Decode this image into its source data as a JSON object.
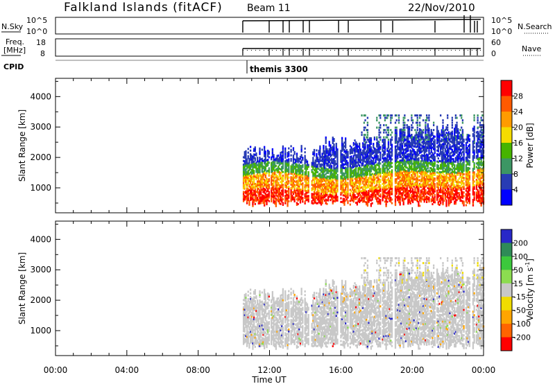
{
  "header": {
    "title": "Falkland Islands (fitACF)",
    "beam": "Beam 11",
    "date": "22/Nov/2010"
  },
  "strips": {
    "nsky": {
      "label": "N.Sky",
      "ticks_left": [
        "10^5",
        "10^0"
      ],
      "ticks_right": [
        "10^5",
        "10^0"
      ],
      "right_label": "N.Search"
    },
    "freq": {
      "label": "Freq.",
      "unit": "[MHz]",
      "ticks_left": [
        "18",
        "8"
      ],
      "ticks_right": [
        "60",
        "0"
      ],
      "right_label": "Nave"
    },
    "cpid": {
      "label": "CPID",
      "program": "themis 3300"
    }
  },
  "power_panel": {
    "ylabel": "Slant Range [km]",
    "colorbar_label": "Power [dB]",
    "colorbar_ticks": [
      "28",
      "24",
      "20",
      "16",
      "12",
      "8",
      "4"
    ],
    "colors": [
      "#ff0000",
      "#ff5a00",
      "#ff9b00",
      "#f5dc00",
      "#46b400",
      "#3c9664",
      "#283cb4",
      "#0000ff"
    ]
  },
  "velocity_panel": {
    "ylabel": "Slant Range [km]",
    "colorbar_label": "Velocity [m s",
    "colorbar_sup": "-1",
    "colorbar_close": "]",
    "colorbar_ticks": [
      "200",
      "100",
      "50",
      "15",
      "-15",
      "-50",
      "-100",
      "-200"
    ],
    "colors": [
      "#2828c8",
      "#2e8b57",
      "#3cc83c",
      "#8cdc50",
      "#c8c8c8",
      "#f0dc00",
      "#ffa500",
      "#ff6400",
      "#ff0000"
    ]
  },
  "xaxis": {
    "label": "Time UT",
    "ticks": [
      "00:00",
      "04:00",
      "08:00",
      "12:00",
      "16:00",
      "20:00",
      "00:00"
    ]
  },
  "chart_data": {
    "type": "heatmap",
    "title": "Falkland Islands (fitACF)",
    "xlabel": "Time UT",
    "ylabel": "Slant Range [km]",
    "x_range_hours": [
      0,
      24
    ],
    "y_range_km": [
      180,
      4600
    ],
    "y_ticks_km": [
      1000,
      2000,
      3000,
      4000
    ],
    "data_start_hour": 10.5,
    "panels": [
      "Power [dB]",
      "Velocity [m s^-1]"
    ],
    "power_scale_db": [
      0,
      32
    ],
    "velocity_scale": [
      -250,
      250
    ]
  }
}
